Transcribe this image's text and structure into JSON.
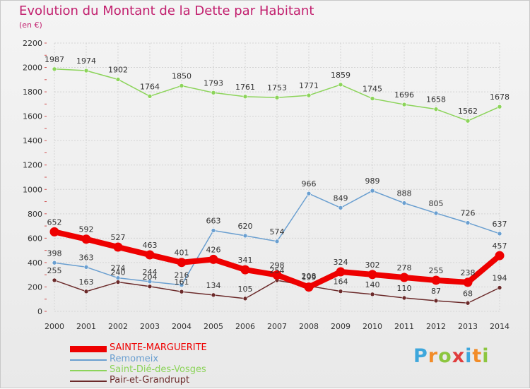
{
  "header": {
    "title": "Evolution du Montant de la Dette par Habitant",
    "unit": "(en €)"
  },
  "logo": {
    "letters": [
      "P",
      "r",
      "o",
      "x",
      "i",
      "t",
      "i"
    ],
    "colors": [
      "#3ea7dc",
      "#f28c28",
      "#8cc63f",
      "#e03c3c",
      "#3ea7dc",
      "#f28c28",
      "#8cc63f"
    ]
  },
  "chart_data": {
    "type": "line",
    "title": "Evolution du Montant de la Dette par Habitant",
    "subtitle": "(en €)",
    "xlabel": "",
    "ylabel": "",
    "ylim": [
      0,
      2200
    ],
    "yticks": [
      0,
      200,
      400,
      600,
      800,
      1000,
      1200,
      1400,
      1600,
      1800,
      2000,
      2200
    ],
    "categories": [
      "2000",
      "2001",
      "2002",
      "2003",
      "2004",
      "2005",
      "2006",
      "2007",
      "2008",
      "2009",
      "2010",
      "2011",
      "2012",
      "2013",
      "2014"
    ],
    "grid": true,
    "legend_position": "bottom-left",
    "series": [
      {
        "name": "Saint-Dié-des-Vosges",
        "color": "#8cd45a",
        "values": [
          1987,
          1974,
          1902,
          1764,
          1850,
          1793,
          1761,
          1753,
          1771,
          1859,
          1745,
          1696,
          1658,
          1562,
          1678
        ]
      },
      {
        "name": "Remomeix",
        "color": "#6a9fd0",
        "values": [
          398,
          363,
          274,
          244,
          216,
          663,
          620,
          574,
          966,
          849,
          989,
          888,
          805,
          726,
          637
        ]
      },
      {
        "name": "Pair-et-Grandrupt",
        "color": "#6b2a2a",
        "values": [
          255,
          163,
          240,
          204,
          161,
          134,
          105,
          254,
          208,
          164,
          140,
          110,
          87,
          68,
          194
        ]
      },
      {
        "name": "SAINTE-MARGUERITE",
        "color": "#ee0000",
        "values": [
          652,
          592,
          527,
          463,
          401,
          426,
          341,
          298,
          199,
          324,
          302,
          278,
          255,
          238,
          457
        ]
      }
    ]
  },
  "legend": [
    {
      "label": "SAINTE-MARGUERITE",
      "color": "#ee0000",
      "thickness": 9
    },
    {
      "label": "Remomeix",
      "color": "#6a9fd0",
      "thickness": 2
    },
    {
      "label": "Saint-Dié-des-Vosges",
      "color": "#8cd45a",
      "thickness": 2
    },
    {
      "label": "Pair-et-Grandrupt",
      "color": "#6b2a2a",
      "thickness": 2
    }
  ]
}
